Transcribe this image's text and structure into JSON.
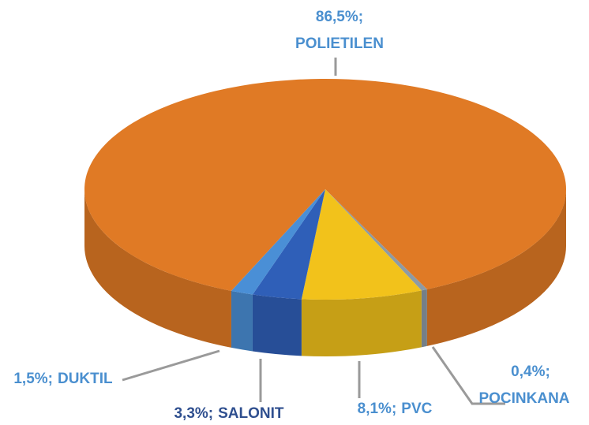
{
  "chart_data": {
    "type": "pie3d",
    "categories": [
      "POCINKANA",
      "PVC",
      "SALONIT",
      "DUKTIL",
      "POLIETILEN"
    ],
    "values": [
      0.4,
      8.1,
      3.3,
      1.5,
      86.5
    ],
    "value_labels": [
      "0,4%;",
      "8,1%;",
      "3,3%;",
      "1,5%;",
      "86,5%;"
    ],
    "colors": [
      "#8d9ba6",
      "#f2c21b",
      "#2f5fb8",
      "#4a8fd6",
      "#e07a25"
    ]
  }
}
